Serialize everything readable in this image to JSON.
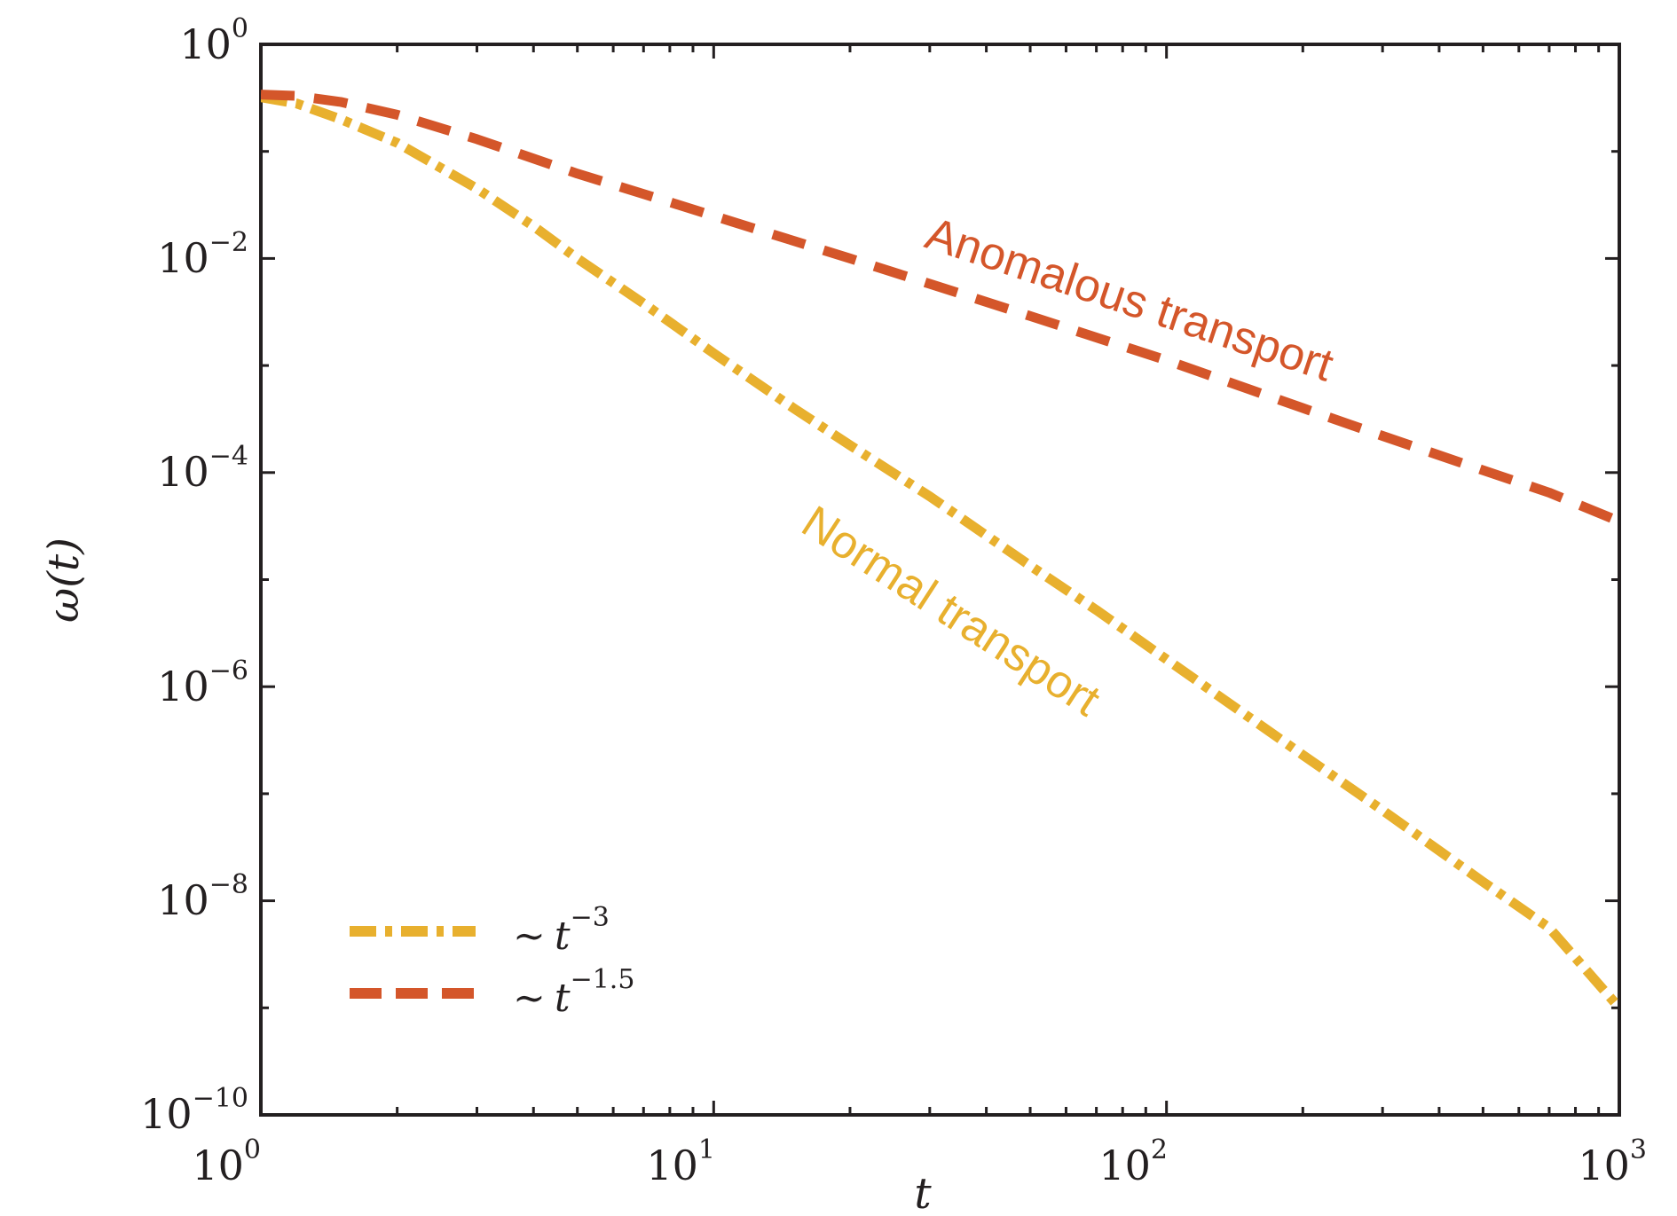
{
  "chart_data": {
    "type": "line",
    "xlabel": "t",
    "ylabel": "ω(t)",
    "xscale": "log",
    "yscale": "log",
    "xlim": [
      1,
      1000
    ],
    "ylim": [
      1e-10,
      1
    ],
    "grid": false,
    "legend_position": "bottom-left",
    "x_ticks": [
      {
        "value": 1,
        "base": "10",
        "exp": "0"
      },
      {
        "value": 10,
        "base": "10",
        "exp": "1"
      },
      {
        "value": 100,
        "base": "10",
        "exp": "2"
      },
      {
        "value": 1000,
        "base": "10",
        "exp": "3"
      }
    ],
    "y_ticks": [
      {
        "value": 1,
        "base": "10",
        "exp": "0"
      },
      {
        "value": 0.01,
        "base": "10",
        "exp": "−2"
      },
      {
        "value": 0.0001,
        "base": "10",
        "exp": "−4"
      },
      {
        "value": 1e-06,
        "base": "10",
        "exp": "−6"
      },
      {
        "value": 1e-08,
        "base": "10",
        "exp": "−8"
      },
      {
        "value": 1e-10,
        "base": "10",
        "exp": "−10"
      }
    ],
    "series": [
      {
        "name": "~ t^-3",
        "legend_prefix": "~",
        "legend_var": "t",
        "legend_exp": "−3",
        "color": "#e8b02e",
        "dash": "dashdot",
        "x": [
          1,
          1.2,
          1.5,
          2,
          3,
          4,
          5,
          7,
          10,
          15,
          20,
          30,
          50,
          70,
          100,
          200,
          300,
          500,
          700,
          1000
        ],
        "y": [
          0.32,
          0.28,
          0.2,
          0.12,
          0.045,
          0.02,
          0.01,
          0.0038,
          0.0013,
          0.0004,
          0.00018,
          6e-05,
          1.35e-05,
          5.2e-06,
          1.8e-06,
          2.3e-07,
          7e-08,
          1.5e-08,
          5.6e-09,
          1e-09
        ]
      },
      {
        "name": "~ t^-1.5",
        "legend_prefix": "~",
        "legend_var": "t",
        "legend_exp": "−1.5",
        "color": "#d4562a",
        "dash": "dashed",
        "x": [
          1,
          1.2,
          1.5,
          2,
          3,
          5,
          7,
          10,
          20,
          30,
          50,
          100,
          200,
          300,
          500,
          700,
          1000
        ],
        "y": [
          0.34,
          0.33,
          0.29,
          0.22,
          0.13,
          0.062,
          0.04,
          0.025,
          0.01,
          0.0058,
          0.0029,
          0.00112,
          0.0004,
          0.00022,
          0.000105,
          6.5e-05,
          3.5e-05
        ]
      }
    ],
    "annotations": [
      {
        "text": "Anomalous transport",
        "color": "#d4562a"
      },
      {
        "text": "Normal transport",
        "color": "#e8b02e"
      }
    ]
  }
}
